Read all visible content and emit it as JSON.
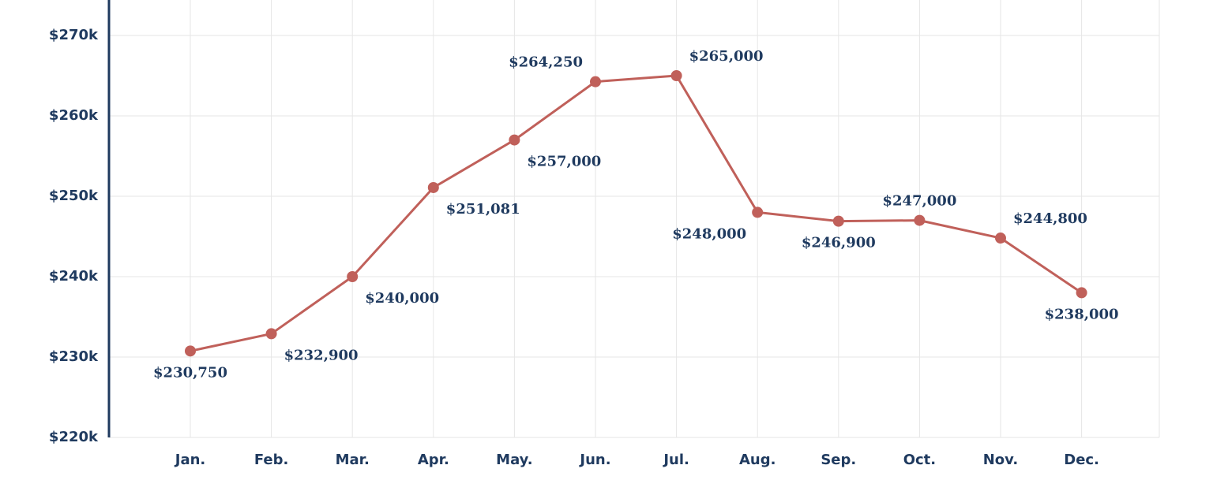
{
  "chart_data": {
    "type": "line",
    "categories": [
      "Jan.",
      "Feb.",
      "Mar.",
      "Apr.",
      "May.",
      "Jun.",
      "Jul.",
      "Aug.",
      "Sep.",
      "Oct.",
      "Nov.",
      "Dec."
    ],
    "series": [
      {
        "values": [
          230750,
          232900,
          240000,
          251081,
          257000,
          264250,
          265000,
          248000,
          246900,
          247000,
          244800,
          238000
        ],
        "data_labels": [
          "$230,750",
          "$232,900",
          "$240,000",
          "$251,081",
          "$257,000",
          "$264,250",
          "$265,000",
          "$248,000",
          "$246,900",
          "$247,000",
          "$244,800",
          "$238,000"
        ],
        "label_positions": [
          "below",
          "below-right",
          "below-right",
          "below-right",
          "below-right",
          "above-left",
          "above-right",
          "below-left",
          "below",
          "above",
          "above-right",
          "below"
        ],
        "color": "#c0605a"
      }
    ],
    "y_ticks": [
      220000,
      230000,
      240000,
      250000,
      260000,
      270000
    ],
    "y_tick_labels": [
      "$220k",
      "$230k",
      "$240k",
      "$250k",
      "$260k",
      "$270k"
    ],
    "ylim": [
      220000,
      270000
    ],
    "grid": true,
    "axis_color": "#1f3a5f",
    "text_color": "#1f3a5f",
    "grid_color": "#e6e6e6"
  }
}
